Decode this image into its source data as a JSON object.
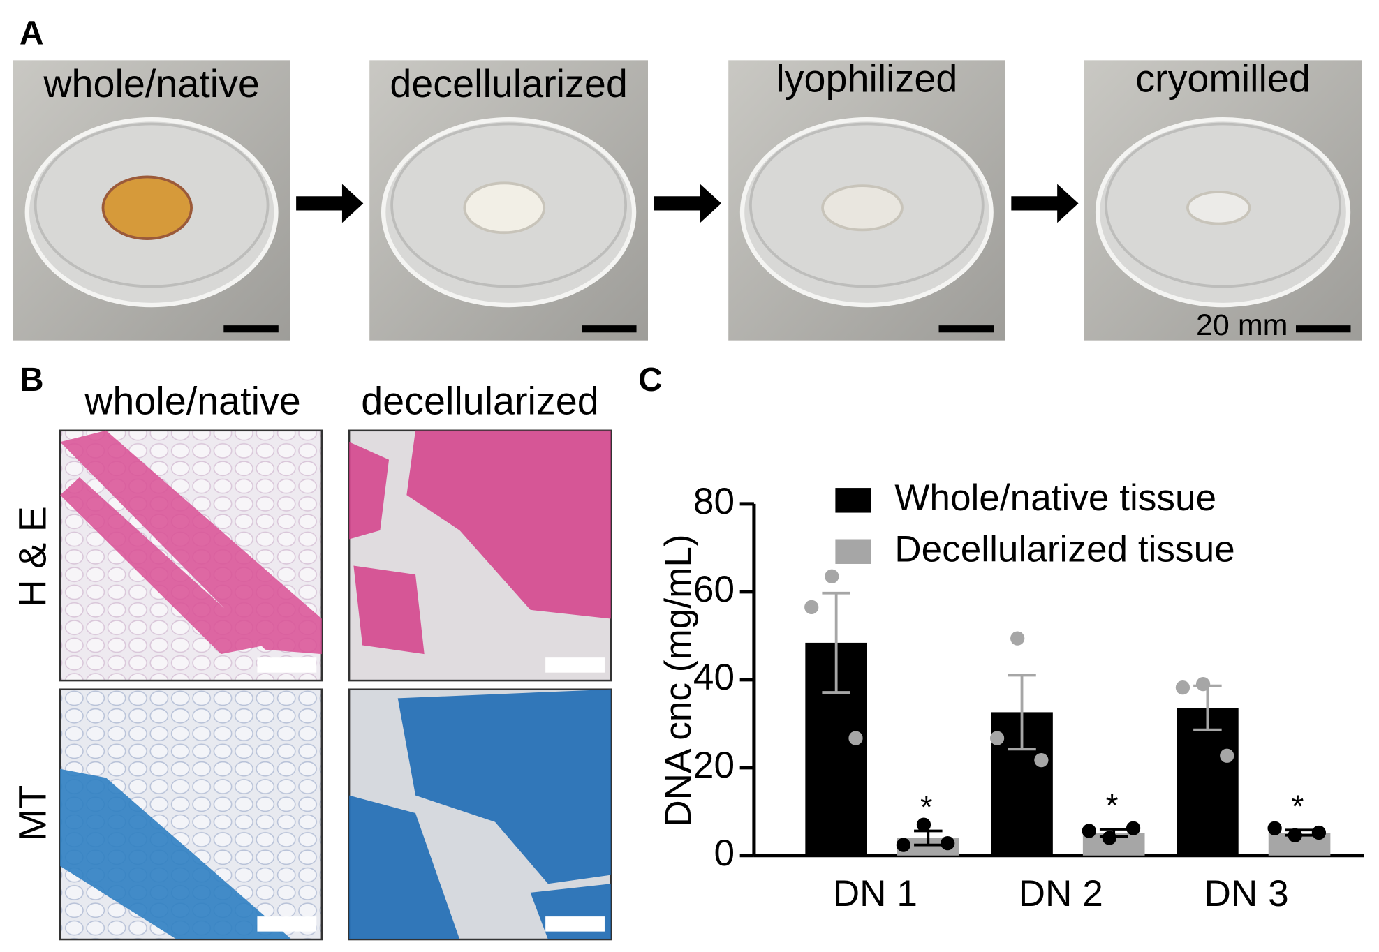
{
  "panels": {
    "A": {
      "label": "A",
      "photos": [
        "whole/native",
        "decellularized",
        "lyophilized",
        "cryomilled"
      ],
      "scale_bar": "20 mm"
    },
    "B": {
      "label": "B",
      "columns": [
        "whole/native",
        "decellularized"
      ],
      "rows": [
        "H & E",
        "MT"
      ]
    },
    "C": {
      "label": "C"
    }
  },
  "chart_data": {
    "type": "bar",
    "ylabel": "DNA cnc (mg/mL)",
    "categories": [
      "DN 1",
      "DN 2",
      "DN 3"
    ],
    "series": [
      {
        "name": "Whole/native tissue",
        "color": "#000000",
        "point_color": "#a6a6a6",
        "values": [
          48.4,
          32.6,
          33.6
        ],
        "errors": [
          11.3,
          8.4,
          5
        ],
        "points": [
          [
            63.5,
            56.5,
            26.7
          ],
          [
            49.4,
            26.7,
            21.7
          ],
          [
            39,
            38.2,
            22.7
          ]
        ]
      },
      {
        "name": "Decellularized tissue",
        "color": "#a6a6a6",
        "point_color": "#000000",
        "values": [
          4,
          5.2,
          5.2
        ],
        "errors": [
          1.6,
          0.8,
          0.6
        ],
        "points": [
          [
            7,
            2.4,
            2.8
          ],
          [
            4,
            5.6,
            6.2
          ],
          [
            4.6,
            6.2,
            5.2
          ]
        ],
        "annotations": [
          "*",
          "*",
          "*"
        ]
      }
    ],
    "ylim": [
      0,
      80
    ],
    "yticks": [
      0,
      20,
      40,
      60,
      80
    ]
  }
}
